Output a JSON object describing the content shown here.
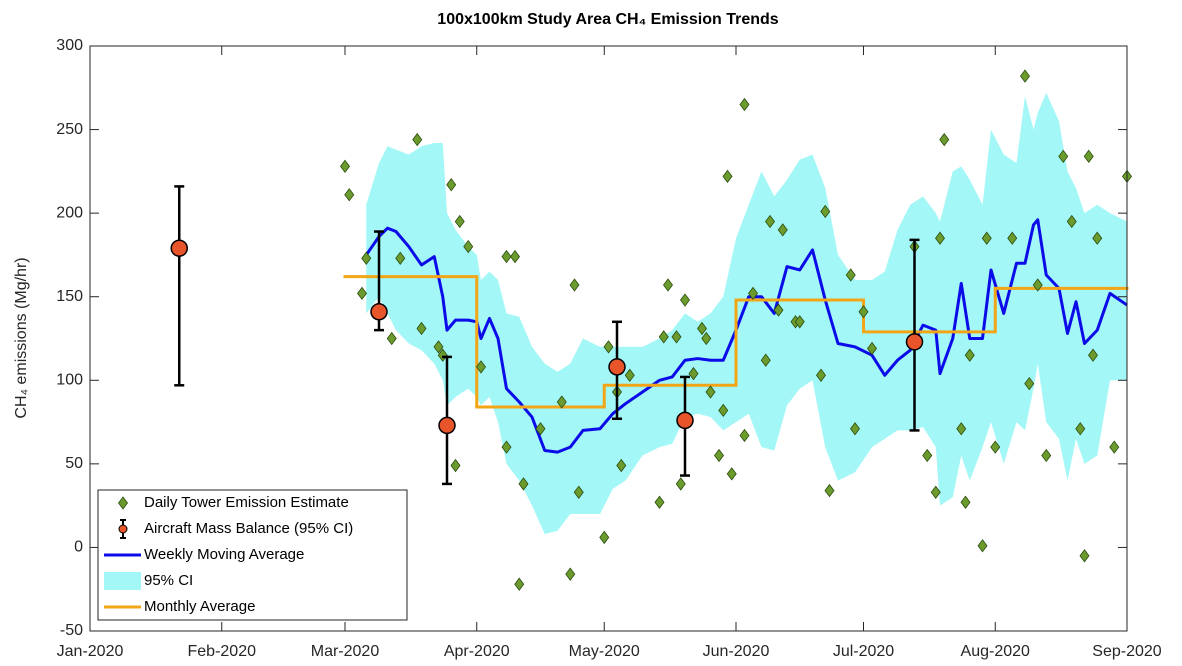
{
  "chart_data": {
    "type": "line",
    "title": "100x100km Study Area CH₄ Emission Trends",
    "ylabel": "CH₄ emissions (Mg/hr)",
    "xlim": [
      0,
      244
    ],
    "xticks": [
      {
        "value": 0,
        "label": "Jan-2020"
      },
      {
        "value": 31,
        "label": "Feb-2020"
      },
      {
        "value": 60,
        "label": "Mar-2020"
      },
      {
        "value": 91,
        "label": "Apr-2020"
      },
      {
        "value": 121,
        "label": "May-2020"
      },
      {
        "value": 152,
        "label": "Jun-2020"
      },
      {
        "value": 182,
        "label": "Jul-2020"
      },
      {
        "value": 213,
        "label": "Aug-2020"
      },
      {
        "value": 244,
        "label": "Sep-2020"
      }
    ],
    "ylim": [
      -50,
      300
    ],
    "yticks": [
      -50,
      0,
      50,
      100,
      150,
      200,
      250,
      300
    ],
    "legend": "lower left",
    "series": [
      {
        "name": "Daily Tower Emission Estimate",
        "type": "scatter",
        "color": "#6b9a2d",
        "x": [
          60,
          61,
          64,
          65,
          71,
          73,
          77,
          78,
          82,
          83,
          85,
          86,
          87,
          89,
          92,
          98,
          98,
          100,
          102,
          101,
          106,
          111,
          113,
          114,
          115,
          121,
          122,
          124,
          125,
          127,
          134,
          135,
          136,
          138,
          139,
          140,
          142,
          144,
          145,
          146,
          148,
          149,
          150,
          151,
          154,
          154,
          156,
          159,
          160,
          163,
          162,
          166,
          167,
          172,
          173,
          174,
          179,
          180,
          182,
          184,
          194,
          197,
          199,
          200,
          201,
          205,
          206,
          207,
          210,
          211,
          213,
          217,
          220,
          221,
          223,
          225,
          229,
          231,
          233,
          234,
          235,
          236,
          237,
          241,
          244
        ],
        "values": [
          228,
          211,
          152,
          173,
          125,
          173,
          244,
          131,
          120,
          115,
          217,
          49,
          195,
          180,
          108,
          60,
          174,
          174,
          38,
          -22,
          71,
          87,
          -16,
          157,
          33,
          6,
          120,
          93,
          49,
          103,
          27,
          126,
          157,
          126,
          38,
          148,
          104,
          131,
          125,
          93,
          55,
          82,
          222,
          44,
          265,
          67,
          152,
          112,
          195,
          190,
          142,
          135,
          135,
          103,
          201,
          34,
          163,
          71,
          141,
          119,
          180,
          55,
          33,
          185,
          244,
          71,
          27,
          115,
          1,
          185,
          60,
          185,
          282,
          98,
          157,
          55,
          234,
          195,
          71,
          -5,
          234,
          115,
          185,
          60,
          222
        ]
      },
      {
        "name": "Aircraft Mass Balance (95% CI)",
        "type": "errorbar",
        "color": "#e8552a",
        "x": [
          21,
          68,
          84,
          124,
          140,
          194
        ],
        "values": [
          179,
          141,
          73,
          108,
          76,
          123
        ],
        "lower": [
          97,
          130,
          38,
          77,
          43,
          70
        ],
        "upper": [
          216,
          189,
          114,
          135,
          102,
          184
        ]
      },
      {
        "name": "Weekly Moving Average",
        "type": "line",
        "color": "#0c0ce8",
        "x": [
          65,
          68,
          70,
          72,
          75,
          78,
          81,
          83,
          84,
          86,
          89,
          91,
          92,
          94,
          96,
          98,
          101,
          104,
          107,
          110,
          113,
          116,
          120,
          123,
          126,
          130,
          134,
          137,
          140,
          143,
          146,
          149,
          152,
          155,
          158,
          161,
          164,
          167,
          170,
          173,
          176,
          180,
          184,
          187,
          190,
          193,
          196,
          199,
          200,
          203,
          205,
          207,
          210,
          212,
          215,
          218,
          220,
          222,
          223,
          225,
          228,
          230,
          232,
          234,
          237,
          240,
          244
        ],
        "values": [
          175,
          186,
          191,
          189,
          180,
          169,
          174,
          150,
          130,
          136,
          136,
          135,
          125,
          137,
          125,
          95,
          87,
          78,
          58,
          57,
          60,
          70,
          71,
          80,
          86,
          93,
          100,
          102,
          112,
          113,
          112,
          112,
          130,
          150,
          150,
          140,
          168,
          166,
          178,
          148,
          122,
          120,
          115,
          103,
          112,
          118,
          133,
          130,
          104,
          125,
          158,
          125,
          125,
          166,
          140,
          170,
          170,
          193,
          196,
          163,
          155,
          128,
          147,
          122,
          130,
          152,
          145
        ]
      },
      {
        "name": "95% CI",
        "type": "area",
        "color": "#a3f7f7",
        "x": [
          65,
          68,
          70,
          72,
          75,
          78,
          81,
          83,
          84,
          86,
          89,
          91,
          92,
          94,
          96,
          98,
          101,
          104,
          107,
          110,
          113,
          116,
          120,
          123,
          126,
          130,
          134,
          137,
          140,
          143,
          146,
          149,
          152,
          155,
          158,
          161,
          164,
          167,
          170,
          173,
          176,
          180,
          184,
          187,
          190,
          193,
          196,
          199,
          200,
          203,
          205,
          207,
          210,
          212,
          215,
          218,
          220,
          222,
          223,
          225,
          228,
          230,
          232,
          234,
          237,
          240,
          244
        ],
        "upper": [
          205,
          230,
          240,
          238,
          235,
          240,
          242,
          242,
          200,
          190,
          180,
          175,
          160,
          165,
          160,
          140,
          138,
          120,
          110,
          105,
          110,
          125,
          120,
          120,
          120,
          120,
          125,
          130,
          140,
          135,
          140,
          150,
          185,
          205,
          225,
          210,
          220,
          232,
          235,
          215,
          175,
          160,
          160,
          165,
          190,
          205,
          210,
          200,
          195,
          225,
          228,
          220,
          205,
          250,
          235,
          230,
          270,
          250,
          260,
          272,
          255,
          225,
          215,
          200,
          205,
          200,
          195
        ],
        "lower": [
          140,
          150,
          140,
          130,
          122,
          118,
          110,
          100,
          85,
          90,
          95,
          90,
          85,
          90,
          75,
          50,
          40,
          25,
          8,
          10,
          20,
          20,
          20,
          35,
          40,
          55,
          60,
          62,
          78,
          80,
          78,
          70,
          75,
          80,
          60,
          58,
          85,
          95,
          100,
          60,
          40,
          45,
          60,
          65,
          70,
          70,
          72,
          60,
          25,
          30,
          55,
          40,
          60,
          75,
          50,
          75,
          70,
          95,
          110,
          75,
          65,
          40,
          65,
          50,
          55,
          100,
          100
        ]
      },
      {
        "name": "Monthly Average",
        "type": "step",
        "color": "#f2a516",
        "bins": [
          60,
          91,
          121,
          152,
          182,
          213,
          244
        ],
        "values": [
          162,
          84,
          97,
          148,
          129,
          155
        ]
      }
    ]
  }
}
